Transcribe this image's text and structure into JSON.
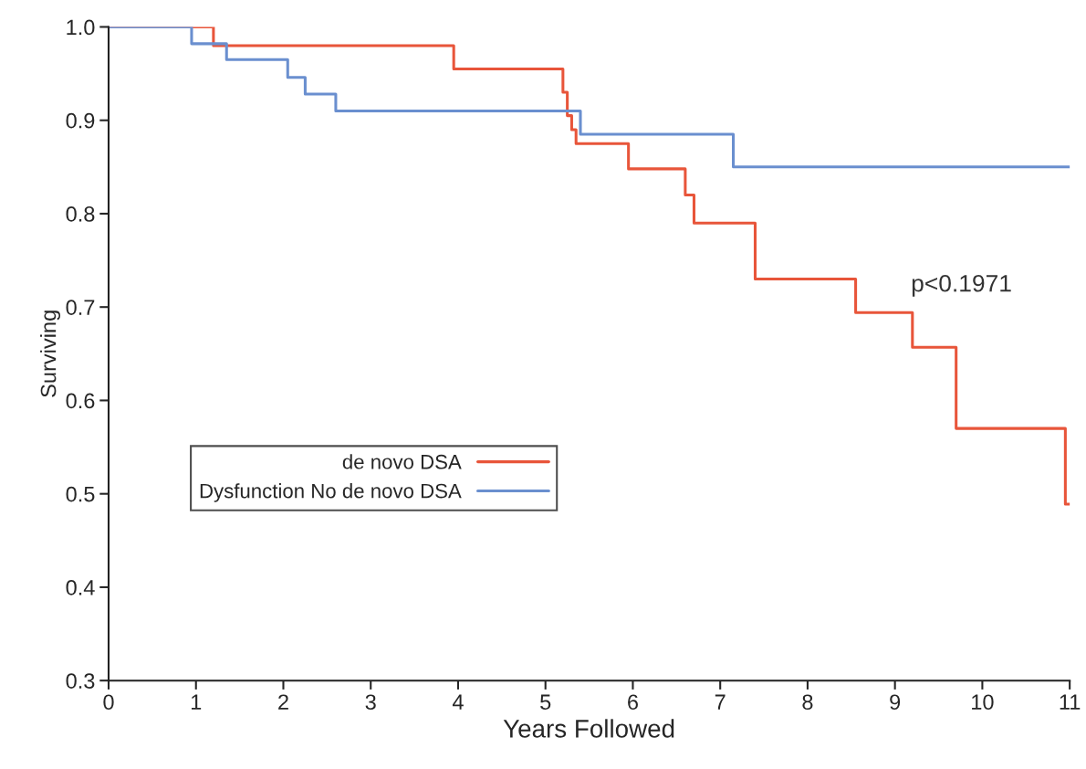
{
  "chart_data": {
    "type": "step",
    "xlabel": "Years Followed",
    "ylabel": "Surviving",
    "xlim": [
      0,
      11
    ],
    "xticks": [
      0,
      1,
      2,
      3,
      4,
      5,
      6,
      7,
      8,
      9,
      10,
      11
    ],
    "ylim": [
      0.3,
      1.0
    ],
    "yticks": [
      {
        "value": 0.3,
        "label": "0.3"
      },
      {
        "value": 0.4,
        "label": "0.4"
      },
      {
        "value": 0.5,
        "label": "0.5"
      },
      {
        "value": 0.6,
        "label": "0.6"
      },
      {
        "value": 0.7,
        "label": "0.7"
      },
      {
        "value": 0.8,
        "label": "0.8"
      },
      {
        "value": 0.9,
        "label": "0.9"
      },
      {
        "value": 1.0,
        "label": "1.0"
      }
    ],
    "series": [
      {
        "name": "de novo DSA",
        "color": "#e8553a",
        "x": [
          0,
          1.2,
          3.95,
          5.2,
          5.25,
          5.3,
          5.35,
          5.95,
          6.6,
          6.7,
          7.4,
          8.55,
          9.2,
          9.7,
          10.95,
          11
        ],
        "values": [
          1.0,
          0.98,
          0.955,
          0.93,
          0.905,
          0.89,
          0.875,
          0.848,
          0.82,
          0.79,
          0.73,
          0.694,
          0.657,
          0.57,
          0.489,
          0.489
        ]
      },
      {
        "name": "Dysfunction No de novo DSA",
        "color": "#6a8fcf",
        "x": [
          0,
          0.95,
          1.35,
          2.05,
          2.25,
          2.6,
          5.4,
          7.15,
          11
        ],
        "values": [
          1.0,
          0.982,
          0.965,
          0.946,
          0.928,
          0.91,
          0.885,
          0.85,
          0.85
        ]
      }
    ],
    "annotations": [
      "p<0.1971"
    ],
    "legend": "center left",
    "grid": false,
    "line_style": "solid",
    "marker": "none"
  }
}
